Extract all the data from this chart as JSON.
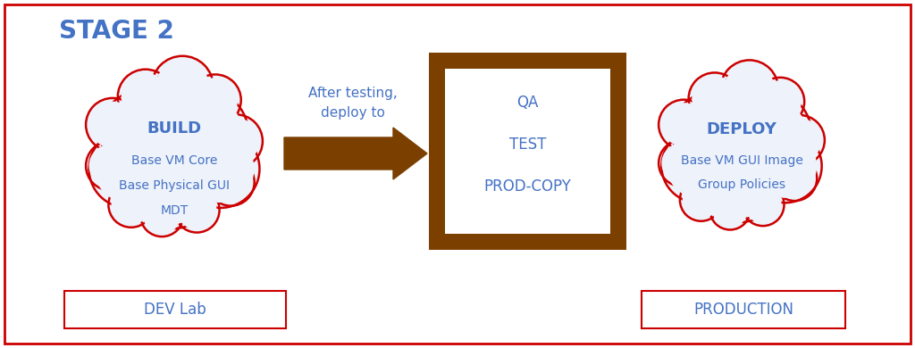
{
  "title": "STAGE 2",
  "title_color": "#4472C4",
  "bg_color": "#FFFFFF",
  "border_color": "#CC0000",
  "cloud1_text_bold": "BUILD",
  "cloud1_text_lines": [
    "Base VM Core",
    "Base Physical GUI",
    "MDT"
  ],
  "cloud1_text_color": "#4472C4",
  "cloud1_fill": "#EEF2FA",
  "cloud1_border": "#CC0000",
  "box1_label": "DEV Lab",
  "box1_color": "#CC0000",
  "box1_text_color": "#4472C4",
  "arrow_label1": "After testing,",
  "arrow_label2": "deploy to",
  "arrow_text_color": "#4472C4",
  "arrow_color": "#7B3F00",
  "box2_lines": [
    "QA",
    "TEST",
    "PROD-COPY"
  ],
  "box2_border_color": "#7B3F00",
  "box2_text_color": "#4472C4",
  "cloud2_text_bold": "DEPLOY",
  "cloud2_text_lines": [
    "Base VM GUI Image",
    "Group Policies"
  ],
  "cloud2_text_color": "#4472C4",
  "cloud2_fill": "#EEF2FA",
  "cloud2_border": "#CC0000",
  "box3_label": "PRODUCTION",
  "box3_color": "#CC0000",
  "box3_text_color": "#4472C4"
}
